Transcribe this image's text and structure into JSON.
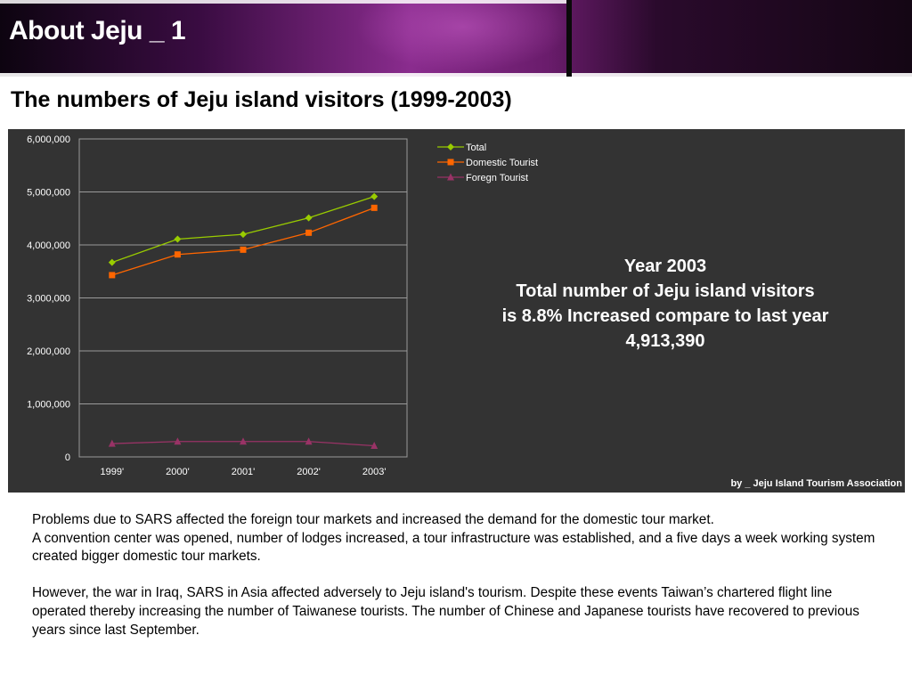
{
  "header": {
    "title": "About Jeju _ 1"
  },
  "subtitle": "The numbers of Jeju island visitors (1999-2003)",
  "chart_data": {
    "type": "line",
    "title": "",
    "xlabel": "",
    "ylabel": "",
    "categories": [
      "1999'",
      "2000'",
      "2001'",
      "2002'",
      "2003'"
    ],
    "ylim": [
      0,
      6000000
    ],
    "yticks": [
      0,
      1000000,
      2000000,
      3000000,
      4000000,
      5000000,
      6000000
    ],
    "ytick_labels": [
      "0",
      "1,000,000",
      "2,000,000",
      "3,000,000",
      "4,000,000",
      "5,000,000",
      "6,000,000"
    ],
    "grid": true,
    "legend_position": "top-right",
    "series": [
      {
        "name": "Total",
        "color": "#99cc00",
        "marker": "diamond",
        "values": [
          3670000,
          4110000,
          4200000,
          4510000,
          4913390
        ]
      },
      {
        "name": "Domestic Tourist",
        "color": "#ff6600",
        "marker": "square",
        "values": [
          3430000,
          3820000,
          3910000,
          4230000,
          4700000
        ]
      },
      {
        "name": "Foregn Tourist",
        "color": "#993366",
        "marker": "triangle",
        "values": [
          250000,
          290000,
          290000,
          290000,
          210000
        ]
      }
    ]
  },
  "highlight": {
    "line1": "Year 2003",
    "line2": "Total number of Jeju island visitors",
    "line3": "is 8.8% Increased compare to last year",
    "line4": "4,913,390"
  },
  "source": "by _ Jeju Island Tourism Association",
  "body": {
    "p1a": "Problems due to SARS  affected the foreign tour markets and increased the demand for the domestic tour market.",
    "p1b": "A convention center was opened, number of lodges increased, a tour infrastructure was established, and a five days a week working system created bigger domestic tour markets.",
    "p2": "However, the war in Iraq, SARS in Asia affected adversely to Jeju island's tourism.  Despite these events Taiwan’s  chartered flight line operated thereby increasing the number of Taiwanese tourists.  The number of Chinese and Japanese tourists have recovered to previous years since last September."
  }
}
